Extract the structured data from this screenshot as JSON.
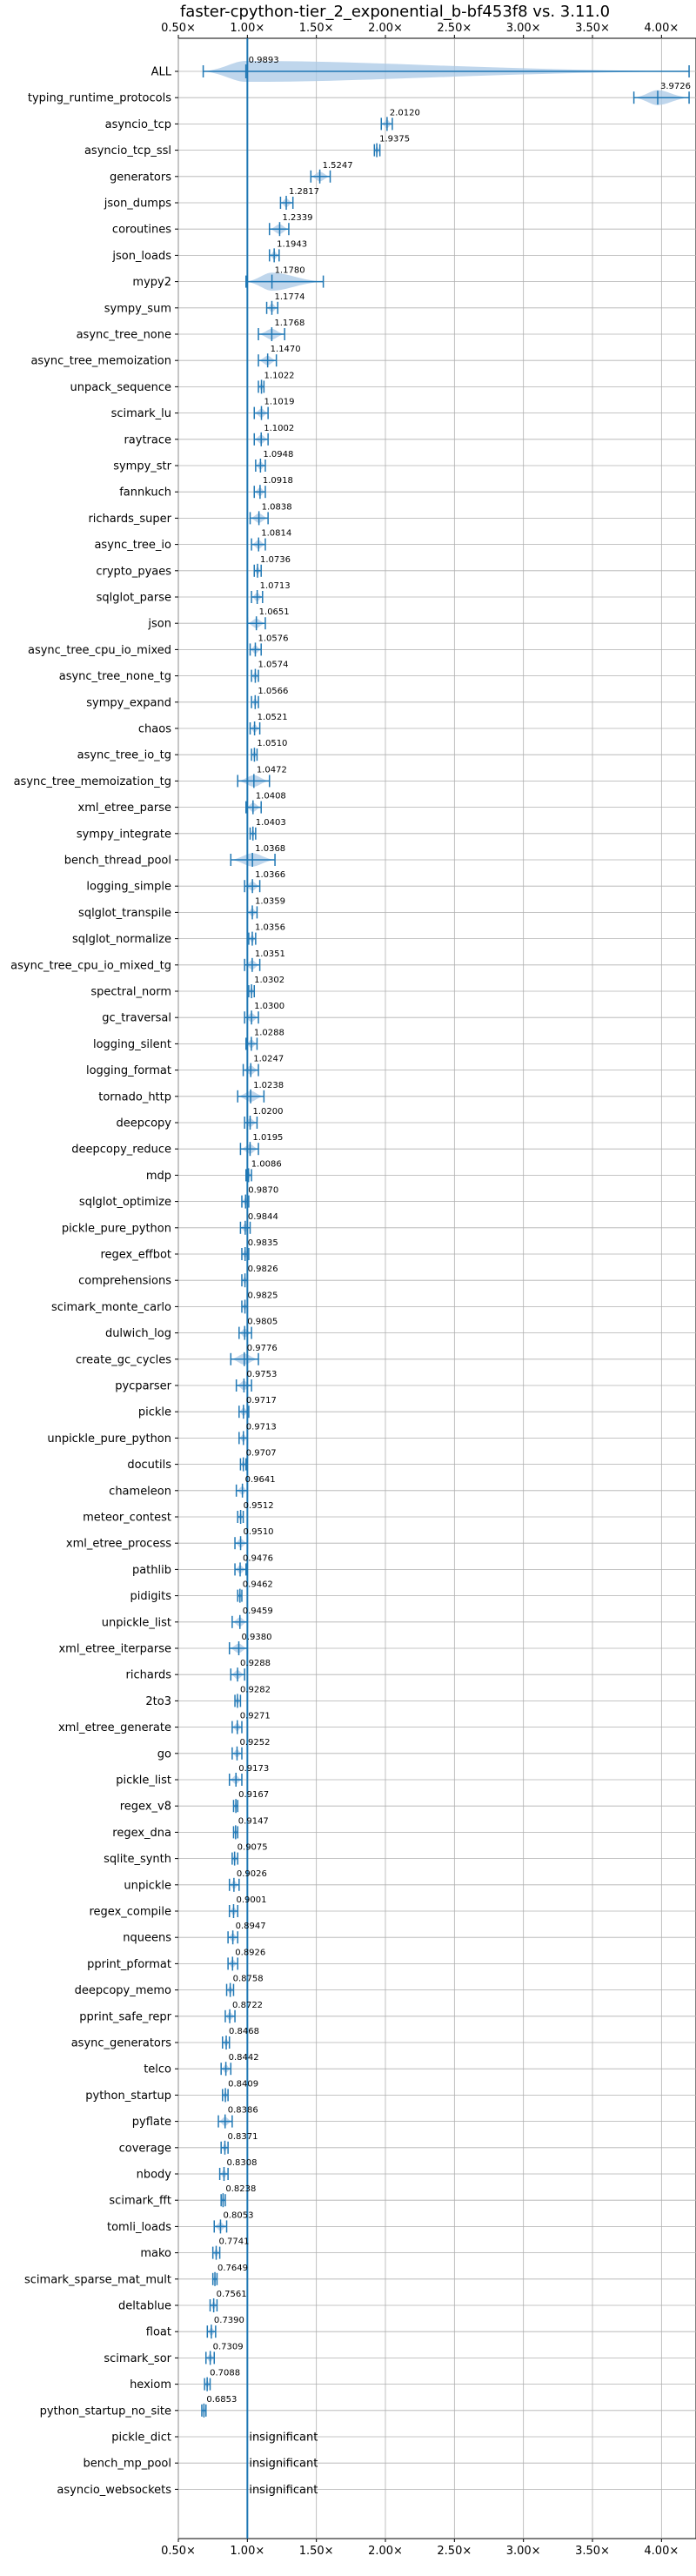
{
  "chart_data": {
    "type": "violin",
    "title": "faster-cpython-tier_2_exponential_b-bf453f8 vs. 3.11.0",
    "xlim": [
      0.5,
      4.25
    ],
    "x_ticks": [
      0.5,
      1.0,
      1.5,
      2.0,
      2.5,
      3.0,
      3.5,
      4.0
    ],
    "x_tick_labels": [
      "0.50×",
      "1.00×",
      "1.50×",
      "2.00×",
      "2.50×",
      "3.00×",
      "3.50×",
      "4.00×"
    ],
    "reference_line": 1.0,
    "grid": true,
    "colors": {
      "series": "#1f77b4",
      "grid": "#b0b0b0",
      "fill": "#a9c8e6"
    },
    "benchmarks": [
      {
        "name": "ALL",
        "value": 0.9893,
        "value_label": "0.9893",
        "min": 0.68,
        "max": 4.2
      },
      {
        "name": "typing_runtime_protocols",
        "value": 3.9726,
        "value_label": "3.9726",
        "min": 3.8,
        "max": 4.2
      },
      {
        "name": "asyncio_tcp",
        "value": 2.012,
        "value_label": "2.0120",
        "min": 1.97,
        "max": 2.05
      },
      {
        "name": "asyncio_tcp_ssl",
        "value": 1.9375,
        "value_label": "1.9375",
        "min": 1.92,
        "max": 1.96
      },
      {
        "name": "generators",
        "value": 1.5247,
        "value_label": "1.5247",
        "min": 1.46,
        "max": 1.6
      },
      {
        "name": "json_dumps",
        "value": 1.2817,
        "value_label": "1.2817",
        "min": 1.24,
        "max": 1.33
      },
      {
        "name": "coroutines",
        "value": 1.2339,
        "value_label": "1.2339",
        "min": 1.16,
        "max": 1.3
      },
      {
        "name": "json_loads",
        "value": 1.1943,
        "value_label": "1.1943",
        "min": 1.16,
        "max": 1.23
      },
      {
        "name": "mypy2",
        "value": 1.178,
        "value_label": "1.1780",
        "min": 0.99,
        "max": 1.55
      },
      {
        "name": "sympy_sum",
        "value": 1.1774,
        "value_label": "1.1774",
        "min": 1.14,
        "max": 1.22
      },
      {
        "name": "async_tree_none",
        "value": 1.1768,
        "value_label": "1.1768",
        "min": 1.08,
        "max": 1.27
      },
      {
        "name": "async_tree_memoization",
        "value": 1.147,
        "value_label": "1.1470",
        "min": 1.08,
        "max": 1.21
      },
      {
        "name": "unpack_sequence",
        "value": 1.1022,
        "value_label": "1.1022",
        "min": 1.08,
        "max": 1.12
      },
      {
        "name": "scimark_lu",
        "value": 1.1019,
        "value_label": "1.1019",
        "min": 1.05,
        "max": 1.15
      },
      {
        "name": "raytrace",
        "value": 1.1002,
        "value_label": "1.1002",
        "min": 1.05,
        "max": 1.15
      },
      {
        "name": "sympy_str",
        "value": 1.0948,
        "value_label": "1.0948",
        "min": 1.06,
        "max": 1.13
      },
      {
        "name": "fannkuch",
        "value": 1.0918,
        "value_label": "1.0918",
        "min": 1.05,
        "max": 1.13
      },
      {
        "name": "richards_super",
        "value": 1.0838,
        "value_label": "1.0838",
        "min": 1.02,
        "max": 1.15
      },
      {
        "name": "async_tree_io",
        "value": 1.0814,
        "value_label": "1.0814",
        "min": 1.03,
        "max": 1.13
      },
      {
        "name": "crypto_pyaes",
        "value": 1.0736,
        "value_label": "1.0736",
        "min": 1.05,
        "max": 1.1
      },
      {
        "name": "sqlglot_parse",
        "value": 1.0713,
        "value_label": "1.0713",
        "min": 1.03,
        "max": 1.11
      },
      {
        "name": "json",
        "value": 1.0651,
        "value_label": "1.0651",
        "min": 1.0,
        "max": 1.13
      },
      {
        "name": "async_tree_cpu_io_mixed",
        "value": 1.0576,
        "value_label": "1.0576",
        "min": 1.02,
        "max": 1.1
      },
      {
        "name": "async_tree_none_tg",
        "value": 1.0574,
        "value_label": "1.0574",
        "min": 1.03,
        "max": 1.08
      },
      {
        "name": "sympy_expand",
        "value": 1.0566,
        "value_label": "1.0566",
        "min": 1.03,
        "max": 1.08
      },
      {
        "name": "chaos",
        "value": 1.0521,
        "value_label": "1.0521",
        "min": 1.02,
        "max": 1.09
      },
      {
        "name": "async_tree_io_tg",
        "value": 1.051,
        "value_label": "1.0510",
        "min": 1.03,
        "max": 1.07
      },
      {
        "name": "async_tree_memoization_tg",
        "value": 1.0472,
        "value_label": "1.0472",
        "min": 0.93,
        "max": 1.16
      },
      {
        "name": "xml_etree_parse",
        "value": 1.0408,
        "value_label": "1.0408",
        "min": 0.99,
        "max": 1.1
      },
      {
        "name": "sympy_integrate",
        "value": 1.0403,
        "value_label": "1.0403",
        "min": 1.02,
        "max": 1.06
      },
      {
        "name": "bench_thread_pool",
        "value": 1.0368,
        "value_label": "1.0368",
        "min": 0.88,
        "max": 1.2
      },
      {
        "name": "logging_simple",
        "value": 1.0366,
        "value_label": "1.0366",
        "min": 0.98,
        "max": 1.09
      },
      {
        "name": "sqlglot_transpile",
        "value": 1.0359,
        "value_label": "1.0359",
        "min": 1.0,
        "max": 1.07
      },
      {
        "name": "sqlglot_normalize",
        "value": 1.0356,
        "value_label": "1.0356",
        "min": 1.01,
        "max": 1.06
      },
      {
        "name": "async_tree_cpu_io_mixed_tg",
        "value": 1.0351,
        "value_label": "1.0351",
        "min": 0.98,
        "max": 1.09
      },
      {
        "name": "spectral_norm",
        "value": 1.0302,
        "value_label": "1.0302",
        "min": 1.01,
        "max": 1.05
      },
      {
        "name": "gc_traversal",
        "value": 1.03,
        "value_label": "1.0300",
        "min": 0.98,
        "max": 1.08
      },
      {
        "name": "logging_silent",
        "value": 1.0288,
        "value_label": "1.0288",
        "min": 0.99,
        "max": 1.07
      },
      {
        "name": "logging_format",
        "value": 1.0247,
        "value_label": "1.0247",
        "min": 0.97,
        "max": 1.08
      },
      {
        "name": "tornado_http",
        "value": 1.0238,
        "value_label": "1.0238",
        "min": 0.93,
        "max": 1.12
      },
      {
        "name": "deepcopy",
        "value": 1.02,
        "value_label": "1.0200",
        "min": 0.98,
        "max": 1.07
      },
      {
        "name": "deepcopy_reduce",
        "value": 1.0195,
        "value_label": "1.0195",
        "min": 0.95,
        "max": 1.08
      },
      {
        "name": "mdp",
        "value": 1.0086,
        "value_label": "1.0086",
        "min": 0.99,
        "max": 1.03
      },
      {
        "name": "sqlglot_optimize",
        "value": 0.987,
        "value_label": "0.9870",
        "min": 0.96,
        "max": 1.01
      },
      {
        "name": "pickle_pure_python",
        "value": 0.9844,
        "value_label": "0.9844",
        "min": 0.95,
        "max": 1.02
      },
      {
        "name": "regex_effbot",
        "value": 0.9835,
        "value_label": "0.9835",
        "min": 0.96,
        "max": 1.01
      },
      {
        "name": "comprehensions",
        "value": 0.9826,
        "value_label": "0.9826",
        "min": 0.96,
        "max": 1.0
      },
      {
        "name": "scimark_monte_carlo",
        "value": 0.9825,
        "value_label": "0.9825",
        "min": 0.96,
        "max": 1.0
      },
      {
        "name": "dulwich_log",
        "value": 0.9805,
        "value_label": "0.9805",
        "min": 0.94,
        "max": 1.03
      },
      {
        "name": "create_gc_cycles",
        "value": 0.9776,
        "value_label": "0.9776",
        "min": 0.88,
        "max": 1.08
      },
      {
        "name": "pycparser",
        "value": 0.9753,
        "value_label": "0.9753",
        "min": 0.92,
        "max": 1.03
      },
      {
        "name": "pickle",
        "value": 0.9717,
        "value_label": "0.9717",
        "min": 0.94,
        "max": 1.01
      },
      {
        "name": "unpickle_pure_python",
        "value": 0.9713,
        "value_label": "0.9713",
        "min": 0.94,
        "max": 1.0
      },
      {
        "name": "docutils",
        "value": 0.9707,
        "value_label": "0.9707",
        "min": 0.95,
        "max": 0.99
      },
      {
        "name": "chameleon",
        "value": 0.9641,
        "value_label": "0.9641",
        "min": 0.92,
        "max": 1.0
      },
      {
        "name": "meteor_contest",
        "value": 0.9512,
        "value_label": "0.9512",
        "min": 0.93,
        "max": 0.97
      },
      {
        "name": "xml_etree_process",
        "value": 0.951,
        "value_label": "0.9510",
        "min": 0.91,
        "max": 1.0
      },
      {
        "name": "pathlib",
        "value": 0.9476,
        "value_label": "0.9476",
        "min": 0.91,
        "max": 0.99
      },
      {
        "name": "pidigits",
        "value": 0.9462,
        "value_label": "0.9462",
        "min": 0.93,
        "max": 0.96
      },
      {
        "name": "unpickle_list",
        "value": 0.9459,
        "value_label": "0.9459",
        "min": 0.89,
        "max": 1.0
      },
      {
        "name": "xml_etree_iterparse",
        "value": 0.938,
        "value_label": "0.9380",
        "min": 0.87,
        "max": 1.0
      },
      {
        "name": "richards",
        "value": 0.9288,
        "value_label": "0.9288",
        "min": 0.88,
        "max": 0.98
      },
      {
        "name": "2to3",
        "value": 0.9282,
        "value_label": "0.9282",
        "min": 0.91,
        "max": 0.95
      },
      {
        "name": "xml_etree_generate",
        "value": 0.9271,
        "value_label": "0.9271",
        "min": 0.89,
        "max": 0.96
      },
      {
        "name": "go",
        "value": 0.9252,
        "value_label": "0.9252",
        "min": 0.89,
        "max": 0.96
      },
      {
        "name": "pickle_list",
        "value": 0.9173,
        "value_label": "0.9173",
        "min": 0.87,
        "max": 0.96
      },
      {
        "name": "regex_v8",
        "value": 0.9167,
        "value_label": "0.9167",
        "min": 0.9,
        "max": 0.93
      },
      {
        "name": "regex_dna",
        "value": 0.9147,
        "value_label": "0.9147",
        "min": 0.9,
        "max": 0.93
      },
      {
        "name": "sqlite_synth",
        "value": 0.9075,
        "value_label": "0.9075",
        "min": 0.89,
        "max": 0.93
      },
      {
        "name": "unpickle",
        "value": 0.9026,
        "value_label": "0.9026",
        "min": 0.87,
        "max": 0.94
      },
      {
        "name": "regex_compile",
        "value": 0.9001,
        "value_label": "0.9001",
        "min": 0.87,
        "max": 0.93
      },
      {
        "name": "nqueens",
        "value": 0.8947,
        "value_label": "0.8947",
        "min": 0.86,
        "max": 0.93
      },
      {
        "name": "pprint_pformat",
        "value": 0.8926,
        "value_label": "0.8926",
        "min": 0.86,
        "max": 0.93
      },
      {
        "name": "deepcopy_memo",
        "value": 0.8758,
        "value_label": "0.8758",
        "min": 0.85,
        "max": 0.9
      },
      {
        "name": "pprint_safe_repr",
        "value": 0.8722,
        "value_label": "0.8722",
        "min": 0.84,
        "max": 0.91
      },
      {
        "name": "async_generators",
        "value": 0.8468,
        "value_label": "0.8468",
        "min": 0.82,
        "max": 0.87
      },
      {
        "name": "telco",
        "value": 0.8442,
        "value_label": "0.8442",
        "min": 0.81,
        "max": 0.88
      },
      {
        "name": "python_startup",
        "value": 0.8409,
        "value_label": "0.8409",
        "min": 0.82,
        "max": 0.86
      },
      {
        "name": "pyflate",
        "value": 0.8386,
        "value_label": "0.8386",
        "min": 0.79,
        "max": 0.89
      },
      {
        "name": "coverage",
        "value": 0.8371,
        "value_label": "0.8371",
        "min": 0.81,
        "max": 0.86
      },
      {
        "name": "nbody",
        "value": 0.8308,
        "value_label": "0.8308",
        "min": 0.8,
        "max": 0.86
      },
      {
        "name": "scimark_fft",
        "value": 0.8238,
        "value_label": "0.8238",
        "min": 0.81,
        "max": 0.84
      },
      {
        "name": "tomli_loads",
        "value": 0.8053,
        "value_label": "0.8053",
        "min": 0.76,
        "max": 0.85
      },
      {
        "name": "mako",
        "value": 0.7741,
        "value_label": "0.7741",
        "min": 0.75,
        "max": 0.8
      },
      {
        "name": "scimark_sparse_mat_mult",
        "value": 0.7649,
        "value_label": "0.7649",
        "min": 0.75,
        "max": 0.78
      },
      {
        "name": "deltablue",
        "value": 0.7561,
        "value_label": "0.7561",
        "min": 0.73,
        "max": 0.78
      },
      {
        "name": "float",
        "value": 0.739,
        "value_label": "0.7390",
        "min": 0.71,
        "max": 0.77
      },
      {
        "name": "scimark_sor",
        "value": 0.7309,
        "value_label": "0.7309",
        "min": 0.7,
        "max": 0.76
      },
      {
        "name": "hexiom",
        "value": 0.7088,
        "value_label": "0.7088",
        "min": 0.69,
        "max": 0.73
      },
      {
        "name": "python_startup_no_site",
        "value": 0.6853,
        "value_label": "0.6853",
        "min": 0.67,
        "max": 0.7
      },
      {
        "name": "pickle_dict",
        "value": null,
        "value_label": "insignificant"
      },
      {
        "name": "bench_mp_pool",
        "value": null,
        "value_label": "insignificant"
      },
      {
        "name": "asyncio_websockets",
        "value": null,
        "value_label": "insignificant"
      }
    ]
  }
}
